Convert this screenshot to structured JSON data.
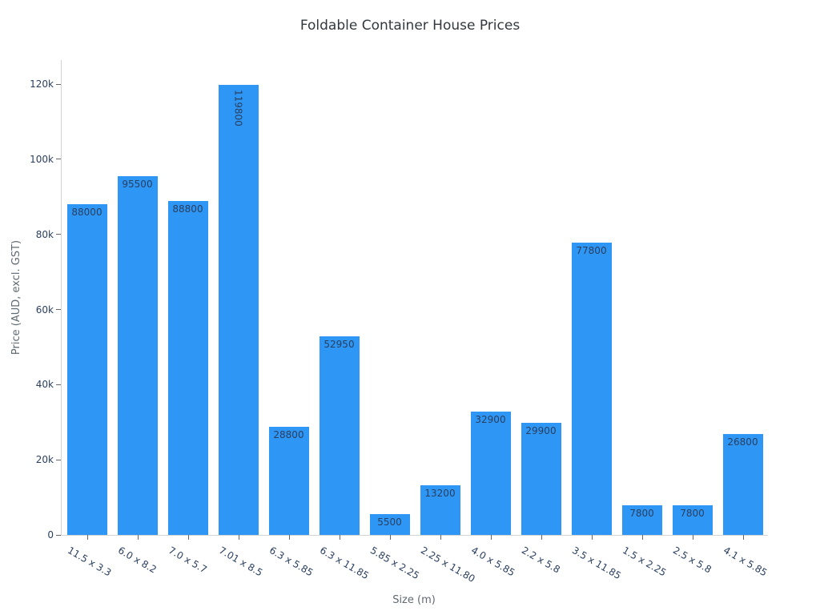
{
  "chart_data": {
    "type": "bar",
    "title": "Foldable Container House Prices",
    "xlabel": "Size (m)",
    "ylabel": "Price (AUD, excl. GST)",
    "categories": [
      "11.5 x 3.3",
      "6.0 x 8.2",
      "7.0 x 5.7",
      "7.01 x 8.5",
      "6.3 x 5.85",
      "6.3 x 11.85",
      "5.85 x 2.25",
      "2.25 x 11.80",
      "4.0 x 5.85",
      "2.2 x 5.8",
      "3.5 x 11.85",
      "1.5 x 2.25",
      "2.5 x 5.8",
      "4.1 x 5.85"
    ],
    "values": [
      88000,
      95500,
      88800,
      119800,
      28800,
      52950,
      5500,
      13200,
      32900,
      29900,
      77800,
      7800,
      7800,
      26800
    ],
    "value_labels": [
      "88000",
      "95500",
      "88800",
      "119800",
      "28800",
      "52950",
      "5500",
      "13200",
      "32900",
      "29900",
      "77800",
      "7800",
      "7800",
      "26800"
    ],
    "value_label_orientation": [
      "h",
      "h",
      "h",
      "v",
      "h",
      "h",
      "h",
      "h",
      "h",
      "h",
      "h",
      "h",
      "h",
      "h"
    ],
    "yticks": [
      0,
      20000,
      40000,
      60000,
      80000,
      100000,
      120000
    ],
    "ytick_labels": [
      "0",
      "20k",
      "40k",
      "60k",
      "80k",
      "100k",
      "120k"
    ],
    "ylim": [
      0,
      126400
    ],
    "grid": false,
    "legend": false,
    "x_tick_angle_deg": 30,
    "colors": {
      "bar": "#2e96f5",
      "value_label": "#2a3f5f",
      "tick_label": "#2a3f5f",
      "axis_title": "#606a72",
      "title": "#32383e",
      "axis_line": "#d4d4d4",
      "tick_mark": "#666666"
    }
  }
}
